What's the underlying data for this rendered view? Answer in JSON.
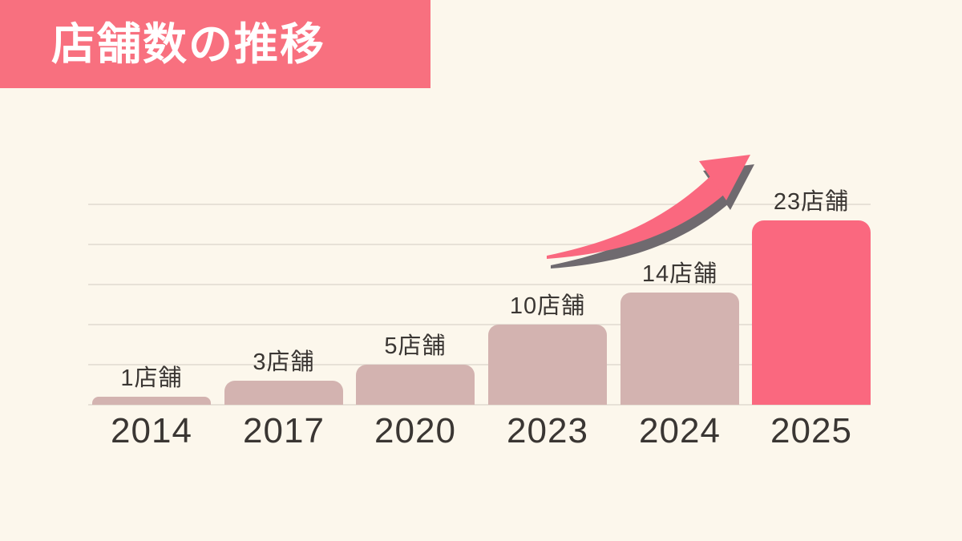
{
  "header": {
    "title": "店舗数の推移"
  },
  "colors": {
    "accent": "#FA687F",
    "banner": "#F8707F",
    "muted_bar": "#D3B3B0",
    "background": "#FCF7EC",
    "gridline": "#E7E1D7",
    "text": "#3A3633",
    "arrow_shadow": "#6F6A6F",
    "title_text": "#FFFFFF"
  },
  "chart_data": {
    "type": "bar",
    "title": "店舗数の推移",
    "categories": [
      "2014",
      "2017",
      "2020",
      "2023",
      "2024",
      "2025"
    ],
    "values": [
      1,
      3,
      5,
      10,
      14,
      23
    ],
    "value_labels": [
      "1店舗",
      "3店舗",
      "5店舗",
      "10店舗",
      "14店舗",
      "23店舗"
    ],
    "xlabel": "",
    "ylabel": "",
    "ylim": [
      0,
      25
    ],
    "gridline_values": [
      0,
      5,
      10,
      15,
      20,
      25
    ],
    "grid": true,
    "legend": false,
    "highlight_index": 5,
    "highlight_category": "2025",
    "annotations": [
      "upward-growth-arrow"
    ]
  }
}
